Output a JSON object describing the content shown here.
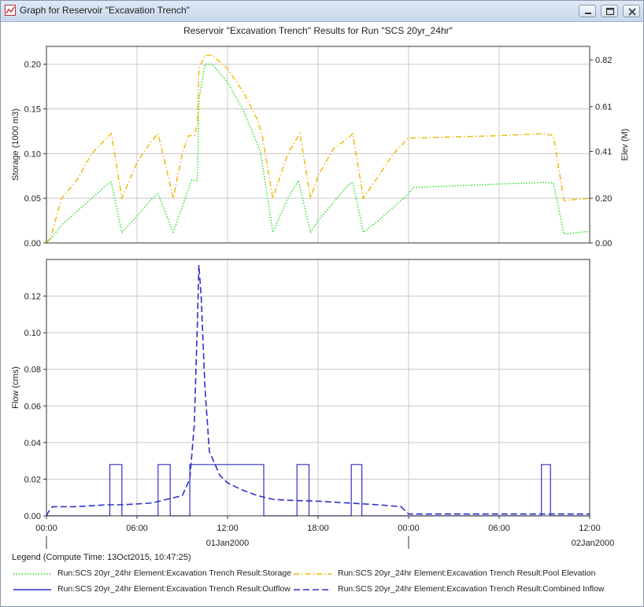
{
  "window": {
    "title": "Graph for Reservoir \"Excavation Trench\"",
    "controls": [
      "minimize",
      "maximize",
      "close"
    ]
  },
  "chart_data": [
    {
      "type": "line",
      "title": "Reservoir \"Excavation Trench\" Results for Run \"SCS 20yr_24hr\"",
      "ylabel": "Storage (1000 m3)",
      "y2label": "Elev (M)",
      "ylim": [
        0,
        0.22
      ],
      "y2lim": [
        0,
        0.88
      ],
      "yticks": [
        "0.00",
        "0.05",
        "0.10",
        "0.15",
        "0.20"
      ],
      "y2ticks": [
        "0.00",
        "0.20",
        "0.41",
        "0.61",
        "0.82"
      ],
      "xlim_hours": [
        0,
        36
      ],
      "grid": true,
      "series": [
        {
          "name": "Run:SCS 20yr_24hr Element:Excavation Trench Result:Storage",
          "axis": "left",
          "style": "dotted",
          "color": "#22dd22",
          "points": [
            [
              0,
              0
            ],
            [
              0.3,
              0.005
            ],
            [
              1,
              0.02
            ],
            [
              2,
              0.035
            ],
            [
              3,
              0.05
            ],
            [
              4,
              0.065
            ],
            [
              4.3,
              0.068
            ],
            [
              5,
              0.012
            ],
            [
              6,
              0.03
            ],
            [
              7,
              0.05
            ],
            [
              7.4,
              0.055
            ],
            [
              8.4,
              0.012
            ],
            [
              9,
              0.04
            ],
            [
              9.4,
              0.06
            ],
            [
              9.6,
              0.07
            ],
            [
              10,
              0.07
            ],
            [
              10.1,
              0.16
            ],
            [
              10.5,
              0.2
            ],
            [
              11,
              0.2
            ],
            [
              12,
              0.18
            ],
            [
              13,
              0.15
            ],
            [
              14,
              0.11
            ],
            [
              14.2,
              0.1
            ],
            [
              15,
              0.012
            ],
            [
              16,
              0.05
            ],
            [
              16.7,
              0.07
            ],
            [
              17.5,
              0.012
            ],
            [
              18,
              0.025
            ],
            [
              19,
              0.045
            ],
            [
              20,
              0.065
            ],
            [
              20.3,
              0.068
            ],
            [
              21,
              0.012
            ],
            [
              22,
              0.025
            ],
            [
              23,
              0.04
            ],
            [
              24,
              0.055
            ],
            [
              24.3,
              0.062
            ],
            [
              30,
              0.066
            ],
            [
              32,
              0.067
            ],
            [
              33,
              0.068
            ],
            [
              33.6,
              0.067
            ],
            [
              34.3,
              0.01
            ],
            [
              36,
              0.013
            ]
          ]
        },
        {
          "name": "Run:SCS 20yr_24hr Element:Excavation Trench Result:Pool Elevation",
          "axis": "right",
          "style": "dash-dot",
          "color": "#f0b800",
          "points": [
            [
              0,
              0
            ],
            [
              0.3,
              0.03
            ],
            [
              1,
              0.2
            ],
            [
              2,
              0.28
            ],
            [
              3,
              0.4
            ],
            [
              4,
              0.47
            ],
            [
              4.3,
              0.49
            ],
            [
              5,
              0.2
            ],
            [
              6,
              0.36
            ],
            [
              7,
              0.46
            ],
            [
              7.4,
              0.49
            ],
            [
              8.4,
              0.2
            ],
            [
              9,
              0.4
            ],
            [
              9.4,
              0.48
            ],
            [
              9.8,
              0.48
            ],
            [
              10,
              0.53
            ],
            [
              10.1,
              0.78
            ],
            [
              10.5,
              0.84
            ],
            [
              11,
              0.84
            ],
            [
              12,
              0.78
            ],
            [
              13,
              0.68
            ],
            [
              14,
              0.55
            ],
            [
              14.3,
              0.48
            ],
            [
              15,
              0.2
            ],
            [
              16,
              0.4
            ],
            [
              16.8,
              0.49
            ],
            [
              17.5,
              0.2
            ],
            [
              18,
              0.3
            ],
            [
              19,
              0.42
            ],
            [
              20,
              0.47
            ],
            [
              20.3,
              0.49
            ],
            [
              21,
              0.2
            ],
            [
              22,
              0.3
            ],
            [
              23,
              0.4
            ],
            [
              24,
              0.47
            ],
            [
              24.3,
              0.47
            ],
            [
              30,
              0.48
            ],
            [
              33,
              0.49
            ],
            [
              33.6,
              0.48
            ],
            [
              34.3,
              0.19
            ],
            [
              36,
              0.2
            ]
          ]
        }
      ]
    },
    {
      "type": "line",
      "ylabel": "Flow (cms)",
      "ylim": [
        0,
        0.14
      ],
      "yticks": [
        "0.00",
        "0.02",
        "0.04",
        "0.06",
        "0.08",
        "0.10",
        "0.12"
      ],
      "xlim_hours": [
        0,
        36
      ],
      "xticks": [
        {
          "hours": 0,
          "label": "00:00"
        },
        {
          "hours": 6,
          "label": "06:00"
        },
        {
          "hours": 12,
          "label": "12:00"
        },
        {
          "hours": 18,
          "label": "18:00"
        },
        {
          "hours": 24,
          "label": "00:00"
        },
        {
          "hours": 30,
          "label": "06:00"
        },
        {
          "hours": 36,
          "label": "12:00"
        }
      ],
      "date_labels": [
        {
          "hours": 12,
          "label": "01Jan2000"
        },
        {
          "hours": 36,
          "label": "02Jan2000"
        }
      ],
      "date_markers_hours": [
        0,
        24
      ],
      "grid": true,
      "series": [
        {
          "name": "Run:SCS 20yr_24hr Element:Excavation Trench Result:Outflow",
          "style": "solid",
          "color": "#3030c8",
          "points": [
            [
              0,
              0
            ],
            [
              4.2,
              0
            ],
            [
              4.2,
              0.028
            ],
            [
              5,
              0.028
            ],
            [
              5,
              0
            ],
            [
              7.4,
              0
            ],
            [
              7.4,
              0.028
            ],
            [
              8.2,
              0.028
            ],
            [
              8.2,
              0
            ],
            [
              9.5,
              0
            ],
            [
              9.5,
              0.028
            ],
            [
              14.4,
              0.028
            ],
            [
              14.4,
              0
            ],
            [
              16.6,
              0
            ],
            [
              16.6,
              0.028
            ],
            [
              17.4,
              0.028
            ],
            [
              17.4,
              0
            ],
            [
              20.2,
              0
            ],
            [
              20.2,
              0.028
            ],
            [
              20.9,
              0.028
            ],
            [
              20.9,
              0
            ],
            [
              32.8,
              0
            ],
            [
              32.8,
              0.028
            ],
            [
              33.4,
              0.028
            ],
            [
              33.4,
              0
            ],
            [
              36,
              0
            ]
          ]
        },
        {
          "name": "Run:SCS 20yr_24hr Element:Excavation Trench Result:Combined Inflow",
          "style": "dashed",
          "color": "#3030c8",
          "points": [
            [
              0,
              0
            ],
            [
              0.2,
              0.003
            ],
            [
              0.4,
              0.005
            ],
            [
              2,
              0.005
            ],
            [
              4,
              0.006
            ],
            [
              5,
              0.006
            ],
            [
              6,
              0.0065
            ],
            [
              7,
              0.007
            ],
            [
              8,
              0.009
            ],
            [
              9,
              0.011
            ],
            [
              9.5,
              0.02
            ],
            [
              9.8,
              0.05
            ],
            [
              10,
              0.105
            ],
            [
              10.1,
              0.137
            ],
            [
              10.25,
              0.12
            ],
            [
              10.5,
              0.07
            ],
            [
              10.8,
              0.035
            ],
            [
              11.5,
              0.022
            ],
            [
              12,
              0.018
            ],
            [
              13,
              0.014
            ],
            [
              14,
              0.011
            ],
            [
              15,
              0.009
            ],
            [
              16,
              0.0085
            ],
            [
              18,
              0.008
            ],
            [
              20,
              0.007
            ],
            [
              22,
              0.006
            ],
            [
              23.5,
              0.005
            ],
            [
              24,
              0.001
            ],
            [
              36,
              0.001
            ]
          ]
        }
      ]
    }
  ],
  "legend": {
    "caption": "Legend (Compute Time: 13Oct2015, 10:47:25)"
  }
}
